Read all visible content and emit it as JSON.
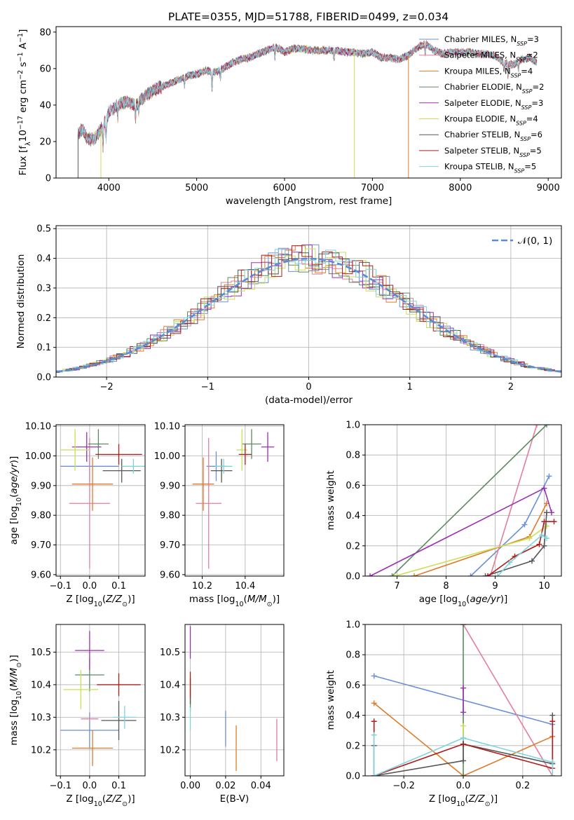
{
  "figure_title": "PLATE=0355, MJD=51788, FIBERID=0499, z=0.034",
  "models": [
    {
      "name": "Chabrier MILES, N_SSP=3",
      "base": "Chabrier MILES, N",
      "sub": "SSP",
      "tail": "=3",
      "color": "#6a8fd8"
    },
    {
      "name": "Salpeter MILES, N_SSP=2",
      "base": "Salpeter MILES, N",
      "sub": "SSP",
      "tail": "=2",
      "color": "#e37e9e"
    },
    {
      "name": "Kroupa MILES, N_SSP=4",
      "base": "Kroupa MILES, N",
      "sub": "SSP",
      "tail": "=4",
      "color": "#e07b2a"
    },
    {
      "name": "Chabrier ELODIE, N_SSP=2",
      "base": "Chabrier ELODIE, N",
      "sub": "SSP",
      "tail": "=2",
      "color": "#5a8a62"
    },
    {
      "name": "Salpeter ELODIE, N_SSP=3",
      "base": "Salpeter ELODIE, N",
      "sub": "SSP",
      "tail": "=3",
      "color": "#9b30b0"
    },
    {
      "name": "Kroupa ELODIE, N_SSP=4",
      "base": "Kroupa ELODIE, N",
      "sub": "SSP",
      "tail": "=4",
      "color": "#c8e052"
    },
    {
      "name": "Chabrier STELIB, N_SSP=6",
      "base": "Chabrier STELIB, N",
      "sub": "SSP",
      "tail": "=6",
      "color": "#555555"
    },
    {
      "name": "Salpeter STELIB, N_SSP=5",
      "base": "Salpeter STELIB, N",
      "sub": "SSP",
      "tail": "=5",
      "color": "#b01c1c"
    },
    {
      "name": "Kroupa STELIB, N_SSP=5",
      "base": "Kroupa STELIB, N",
      "sub": "SSP",
      "tail": "=5",
      "color": "#7fd4dc"
    }
  ],
  "chart_data": [
    {
      "id": "spectrum",
      "type": "line",
      "xlabel": "wavelength [Angstrom, rest frame]",
      "ylabel": "Flux [f_λ 10^-17 erg cm^-2 s^-1 A^-1]",
      "xlim": [
        3400,
        9150
      ],
      "ylim": [
        0,
        83
      ],
      "xticks": [
        4000,
        5000,
        6000,
        7000,
        8000,
        9000
      ],
      "yticks": [
        0,
        20,
        40,
        60,
        80
      ],
      "continuum": [
        [
          3650,
          24
        ],
        [
          3700,
          27
        ],
        [
          3750,
          22
        ],
        [
          3800,
          21
        ],
        [
          3850,
          22
        ],
        [
          3900,
          26
        ],
        [
          3950,
          30
        ],
        [
          4000,
          36
        ],
        [
          4100,
          40
        ],
        [
          4200,
          42
        ],
        [
          4300,
          40
        ],
        [
          4400,
          44
        ],
        [
          4500,
          48
        ],
        [
          4600,
          50
        ],
        [
          4700,
          52
        ],
        [
          4800,
          54
        ],
        [
          4900,
          56
        ],
        [
          5000,
          57
        ],
        [
          5100,
          59
        ],
        [
          5200,
          58
        ],
        [
          5300,
          60
        ],
        [
          5400,
          63
        ],
        [
          5500,
          65
        ],
        [
          5600,
          66
        ],
        [
          5700,
          68
        ],
        [
          5800,
          70
        ],
        [
          5900,
          72
        ],
        [
          6000,
          69
        ],
        [
          6100,
          71
        ],
        [
          6200,
          71
        ],
        [
          6300,
          70
        ],
        [
          6400,
          70
        ],
        [
          6500,
          70
        ],
        [
          6600,
          70
        ],
        [
          6700,
          69
        ],
        [
          6800,
          69
        ],
        [
          6900,
          68
        ],
        [
          7000,
          69
        ],
        [
          7100,
          66
        ],
        [
          7200,
          66
        ],
        [
          7300,
          65
        ],
        [
          7400,
          67
        ],
        [
          7500,
          71
        ],
        [
          7600,
          74
        ],
        [
          7700,
          70
        ],
        [
          7800,
          68
        ],
        [
          7900,
          69
        ],
        [
          8000,
          69
        ],
        [
          8100,
          69
        ],
        [
          8200,
          68
        ],
        [
          8300,
          68
        ],
        [
          8400,
          67
        ],
        [
          8500,
          63
        ],
        [
          8600,
          62
        ],
        [
          8700,
          65
        ],
        [
          8800,
          66
        ],
        [
          8870,
          63
        ]
      ],
      "absorption_lines": [
        [
          3934,
          -12
        ],
        [
          3969,
          -10
        ],
        [
          4102,
          -6
        ],
        [
          4305,
          -8
        ],
        [
          4340,
          -5
        ],
        [
          4861,
          -5
        ],
        [
          5175,
          -9
        ],
        [
          5270,
          -5
        ],
        [
          5890,
          -6
        ],
        [
          6563,
          -5
        ],
        [
          7600,
          -6
        ],
        [
          8498,
          -5
        ],
        [
          8542,
          -6
        ],
        [
          8662,
          -5
        ]
      ],
      "dropouts": [
        {
          "x": 3910,
          "to": 0,
          "series": 5
        },
        {
          "x": 6795,
          "to": 0,
          "series": 5
        },
        {
          "x": 7410,
          "to": 0,
          "series": 2
        },
        {
          "x": 3650,
          "to": 0,
          "series": 6
        }
      ]
    },
    {
      "id": "residuals",
      "type": "histogram",
      "xlabel": "(data-model)/error",
      "ylabel": "Normed distribution",
      "xlim": [
        -2.5,
        2.5
      ],
      "ylim": [
        0,
        0.51
      ],
      "xticks": [
        -2,
        -1,
        0,
        1,
        2
      ],
      "yticks": [
        0.0,
        0.1,
        0.2,
        0.3,
        0.4,
        0.5
      ],
      "bin_width": 0.1,
      "reference": {
        "label": "𝒩(0, 1)",
        "color": "#5b8ad6",
        "style": "dashed"
      }
    },
    {
      "id": "age_vs_Z",
      "type": "errorbar",
      "xlabel": "Z [log10(Z/Z_sun)]",
      "ylabel": "age [log10(age/yr)]",
      "xlim": [
        -0.115,
        0.19
      ],
      "ylim": [
        9.595,
        10.105
      ],
      "xticks": [
        -0.1,
        0.0,
        0.1
      ],
      "yticks": [
        9.6,
        9.7,
        9.8,
        9.9,
        10.0,
        10.1
      ],
      "points": [
        {
          "series": 0,
          "x": 0.0,
          "y": 9.965,
          "xerr": 0.1,
          "yerr": 0.05
        },
        {
          "series": 1,
          "x": 0.0,
          "y": 9.84,
          "xerr": 0.07,
          "yerr": 0.22
        },
        {
          "series": 2,
          "x": 0.01,
          "y": 9.905,
          "xerr": 0.07,
          "yerr": 0.09
        },
        {
          "series": 3,
          "x": 0.03,
          "y": 10.04,
          "xerr": 0.035,
          "yerr": 0.05
        },
        {
          "series": 4,
          "x": -0.01,
          "y": 10.03,
          "xerr": 0.05,
          "yerr": 0.05
        },
        {
          "series": 5,
          "x": -0.05,
          "y": 10.02,
          "xerr": 0.05,
          "yerr": 0.07
        },
        {
          "series": 6,
          "x": 0.11,
          "y": 9.95,
          "xerr": 0.065,
          "yerr": 0.04
        },
        {
          "series": 7,
          "x": 0.1,
          "y": 10.005,
          "xerr": 0.08,
          "yerr": 0.035
        },
        {
          "series": 8,
          "x": 0.15,
          "y": 9.965,
          "xerr": 0.04,
          "yerr": 0.025
        }
      ]
    },
    {
      "id": "age_vs_mass",
      "type": "errorbar",
      "xlabel": "mass [log10(M/M_sun)]",
      "ylabel": "",
      "xlim": [
        10.12,
        10.58
      ],
      "ylim": [
        9.595,
        10.105
      ],
      "xticks": [
        10.2,
        10.4
      ],
      "yticks": [
        9.6,
        9.7,
        9.8,
        9.9,
        10.0,
        10.1
      ],
      "points": [
        {
          "series": 0,
          "x": 10.265,
          "y": 9.965,
          "xerr": 0.045,
          "yerr": 0.05
        },
        {
          "series": 1,
          "x": 10.23,
          "y": 9.84,
          "xerr": 0.06,
          "yerr": 0.22
        },
        {
          "series": 2,
          "x": 10.205,
          "y": 9.905,
          "xerr": 0.05,
          "yerr": 0.09
        },
        {
          "series": 3,
          "x": 10.43,
          "y": 10.04,
          "xerr": 0.045,
          "yerr": 0.05
        },
        {
          "series": 4,
          "x": 10.505,
          "y": 10.03,
          "xerr": 0.03,
          "yerr": 0.05
        },
        {
          "series": 5,
          "x": 10.385,
          "y": 10.02,
          "xerr": 0.025,
          "yerr": 0.07
        },
        {
          "series": 6,
          "x": 10.29,
          "y": 9.95,
          "xerr": 0.05,
          "yerr": 0.04
        },
        {
          "series": 7,
          "x": 10.4,
          "y": 10.005,
          "xerr": 0.03,
          "yerr": 0.035
        },
        {
          "series": 8,
          "x": 10.3,
          "y": 9.965,
          "xerr": 0.04,
          "yerr": 0.025
        }
      ]
    },
    {
      "id": "weight_vs_age",
      "type": "line",
      "xlabel": "age [log10(age/yr)]",
      "ylabel": "mass weight",
      "xlim": [
        6.35,
        10.35
      ],
      "ylim": [
        0,
        1
      ],
      "xticks": [
        7,
        8,
        9,
        10
      ],
      "yticks": [
        0.0,
        0.2,
        0.4,
        0.6,
        0.8,
        1.0
      ],
      "series": [
        {
          "series": 0,
          "points": [
            [
              8.5,
              0
            ],
            [
              9.6,
              0.34
            ],
            [
              10.1,
              0.66
            ]
          ]
        },
        {
          "series": 1,
          "points": [
            [
              8.9,
              0
            ],
            [
              9.85,
              1.0
            ]
          ]
        },
        {
          "series": 2,
          "points": [
            [
              7.35,
              0
            ],
            [
              9.7,
              0.26
            ],
            [
              10.05,
              0.48
            ]
          ]
        },
        {
          "series": 3,
          "points": [
            [
              6.9,
              0
            ],
            [
              10.05,
              1.0
            ]
          ]
        },
        {
          "series": 4,
          "points": [
            [
              6.45,
              0
            ],
            [
              10.0,
              0.58
            ],
            [
              10.15,
              0.42
            ]
          ]
        },
        {
          "series": 5,
          "points": [
            [
              6.95,
              0
            ],
            [
              9.7,
              0.25
            ],
            [
              10.05,
              0.33
            ]
          ]
        },
        {
          "series": 6,
          "points": [
            [
              8.8,
              0
            ],
            [
              9.75,
              0.1
            ],
            [
              10.0,
              0.2
            ],
            [
              10.05,
              0.42
            ]
          ]
        },
        {
          "series": 7,
          "points": [
            [
              8.85,
              0
            ],
            [
              9.4,
              0.13
            ],
            [
              9.9,
              0.21
            ],
            [
              10.0,
              0.36
            ],
            [
              10.2,
              0.36
            ]
          ]
        },
        {
          "series": 8,
          "points": [
            [
              9.05,
              0
            ],
            [
              9.3,
              0.09
            ],
            [
              9.95,
              0.27
            ],
            [
              10.05,
              0.25
            ]
          ]
        }
      ]
    },
    {
      "id": "mass_vs_Z",
      "type": "errorbar",
      "xlabel": "Z [log10(Z/Z_sun)]",
      "ylabel": "mass [log10(M/M_sun)]",
      "xlim": [
        -0.115,
        0.19
      ],
      "ylim": [
        10.12,
        10.585
      ],
      "xticks": [
        -0.1,
        0.0,
        0.1
      ],
      "yticks": [
        10.2,
        10.3,
        10.4,
        10.5
      ],
      "points": [
        {
          "series": 0,
          "x": 0.0,
          "y": 10.26,
          "xerr": 0.1,
          "yerr": 0.055
        },
        {
          "series": 1,
          "x": 0.0,
          "y": 10.295,
          "xerr": 0.03,
          "yerr": 0.005
        },
        {
          "series": 2,
          "x": 0.01,
          "y": 10.205,
          "xerr": 0.07,
          "yerr": 0.055
        },
        {
          "series": 3,
          "x": 0.0,
          "y": 10.43,
          "xerr": 0.05,
          "yerr": 0.05
        },
        {
          "series": 4,
          "x": 0.0,
          "y": 10.505,
          "xerr": 0.05,
          "yerr": 0.06
        },
        {
          "series": 5,
          "x": -0.03,
          "y": 10.385,
          "xerr": 0.06,
          "yerr": 0.06
        },
        {
          "series": 6,
          "x": 0.1,
          "y": 10.29,
          "xerr": 0.06,
          "yerr": 0.06
        },
        {
          "series": 7,
          "x": 0.1,
          "y": 10.4,
          "xerr": 0.075,
          "yerr": 0.035
        },
        {
          "series": 8,
          "x": 0.12,
          "y": 10.3,
          "xerr": 0.04,
          "yerr": 0.035
        }
      ]
    },
    {
      "id": "mass_vs_EBV",
      "type": "errorbar",
      "xlabel": "E(B-V)",
      "ylabel": "",
      "xlim": [
        -0.003,
        0.053
      ],
      "ylim": [
        10.12,
        10.585
      ],
      "xticks": [
        0.0,
        0.02,
        0.04
      ],
      "yticks": [
        10.2,
        10.3,
        10.4,
        10.5
      ],
      "points": [
        {
          "series": 0,
          "x": 0.02,
          "y": 10.265,
          "xerr": 0,
          "yerr": 0.055
        },
        {
          "series": 1,
          "x": 0.049,
          "y": 10.23,
          "xerr": 0,
          "yerr": 0.065
        },
        {
          "series": 2,
          "x": 0.026,
          "y": 10.205,
          "xerr": 0,
          "yerr": 0.07
        },
        {
          "series": 3,
          "x": 0.0,
          "y": 10.34,
          "xerr": 0,
          "yerr": 0.02
        },
        {
          "series": 4,
          "x": 0.0,
          "y": 10.53,
          "xerr": 0,
          "yerr": 0.05
        },
        {
          "series": 5,
          "x": 0.0,
          "y": 10.385,
          "xerr": 0,
          "yerr": 0.04
        },
        {
          "series": 6,
          "x": 0.0,
          "y": 10.38,
          "xerr": 0,
          "yerr": 0.04
        },
        {
          "series": 7,
          "x": 0.0,
          "y": 10.4,
          "xerr": 0,
          "yerr": 0.04
        },
        {
          "series": 8,
          "x": 0.0,
          "y": 10.295,
          "xerr": 0,
          "yerr": 0.035
        }
      ]
    },
    {
      "id": "weight_vs_Z",
      "type": "line",
      "xlabel": "Z [log10(Z/Z_sun)]",
      "ylabel": "mass weight",
      "xlim": [
        -0.33,
        0.33
      ],
      "ylim": [
        0,
        1
      ],
      "xticks": [
        -0.2,
        0.0,
        0.2
      ],
      "yticks": [
        0.0,
        0.2,
        0.4,
        0.6,
        0.8,
        1.0
      ],
      "series": [
        {
          "series": 0,
          "points": [
            [
              -0.3,
              0.66
            ],
            [
              0.3,
              0.34
            ]
          ]
        },
        {
          "series": 1,
          "points": [
            [
              0.0,
              1.0
            ],
            [
              0.3,
              0.0
            ]
          ]
        },
        {
          "series": 2,
          "points": [
            [
              -0.3,
              0.48
            ],
            [
              0.0,
              0.0
            ],
            [
              0.3,
              0.26
            ]
          ]
        },
        {
          "series": 3,
          "points": [
            [
              0.0,
              0.0
            ],
            [
              0.0,
              1.0
            ]
          ]
        },
        {
          "series": 4,
          "points": [
            [
              0.0,
              0.42
            ],
            [
              0.0,
              0.58
            ]
          ]
        },
        {
          "series": 5,
          "points": [
            [
              0.0,
              0.25
            ],
            [
              0.0,
              0.33
            ]
          ]
        },
        {
          "series": 6,
          "points": [
            [
              -0.3,
              0.2
            ],
            [
              -0.3,
              0.0
            ],
            [
              0.0,
              0.1
            ],
            [
              0.0,
              0.21
            ],
            [
              0.3,
              0.08
            ],
            [
              0.3,
              0.4
            ]
          ]
        },
        {
          "series": 7,
          "points": [
            [
              -0.3,
              0.36
            ],
            [
              -0.3,
              0.0
            ],
            [
              0.0,
              0.21
            ],
            [
              0.3,
              0.05
            ],
            [
              0.3,
              0.36
            ]
          ]
        },
        {
          "series": 8,
          "points": [
            [
              -0.3,
              0.27
            ],
            [
              -0.3,
              0.0
            ],
            [
              0.0,
              0.25
            ],
            [
              0.3,
              0.09
            ],
            [
              0.3,
              0.0
            ]
          ]
        }
      ]
    }
  ]
}
